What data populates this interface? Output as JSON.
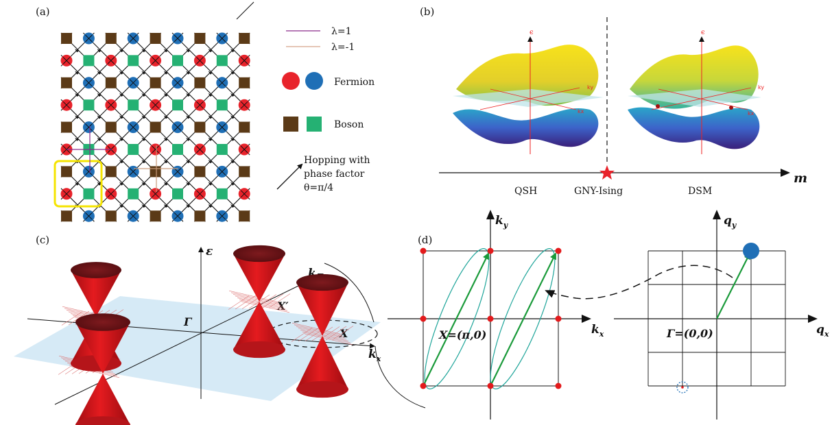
{
  "panels": {
    "a": {
      "tag": "(a)",
      "legend": {
        "lambda_pos": "λ=1",
        "lambda_neg": "λ=-1",
        "fermion": "Fermion",
        "boson": "Boson",
        "hopping_1": "Hopping with",
        "hopping_2": "phase factor",
        "hopping_3": "θ=π/4"
      },
      "colors": {
        "fermion_red": "#e8232b",
        "fermion_blue": "#1f6fb6",
        "boson_brown": "#5b3a17",
        "boson_green": "#25b173",
        "highlight": "#f5e400"
      }
    },
    "b": {
      "tag": "(b)",
      "axis_label": "m",
      "phases": [
        "QSH",
        "GNY-Ising",
        "DSM"
      ],
      "energy_label": "ϵ",
      "kx_label": "kx",
      "ky_label": "ky"
    },
    "c": {
      "tag": "(c)",
      "energy_label": "ε",
      "gamma_label": "Γ",
      "x_label": "X",
      "xprime_label": "X′",
      "kx_label": "k",
      "kx_sub": "x",
      "ky_label": "k",
      "ky_sub": "y"
    },
    "d": {
      "tag": "(d)",
      "left": {
        "kx": "k",
        "kx_sub": "x",
        "ky": "k",
        "ky_sub": "y",
        "point": "X=(π,0)"
      },
      "right": {
        "qx": "q",
        "qx_sub": "x",
        "qy": "q",
        "qy_sub": "y",
        "point": "Γ=(0,0)"
      }
    }
  }
}
